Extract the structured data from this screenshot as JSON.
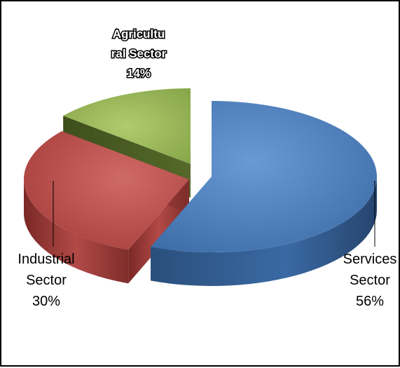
{
  "chart_data": {
    "type": "pie",
    "categories": [
      "Services Sector",
      "Industrial Sector",
      "Agricultural Sector"
    ],
    "values": [
      56,
      30,
      14
    ],
    "label_lines": [
      [
        "Services",
        "Sector",
        "56%"
      ],
      [
        "Industrial",
        "Sector",
        "30%"
      ],
      [
        "Agricultu",
        "ral Sector",
        "14%"
      ]
    ],
    "colors": [
      "#4F81BD",
      "#C0504D",
      "#9BBB59"
    ],
    "side_colors": [
      "#2F5A8C",
      "#8C2F2C",
      "#4A5E22"
    ],
    "exploded": true,
    "three_d": true
  }
}
